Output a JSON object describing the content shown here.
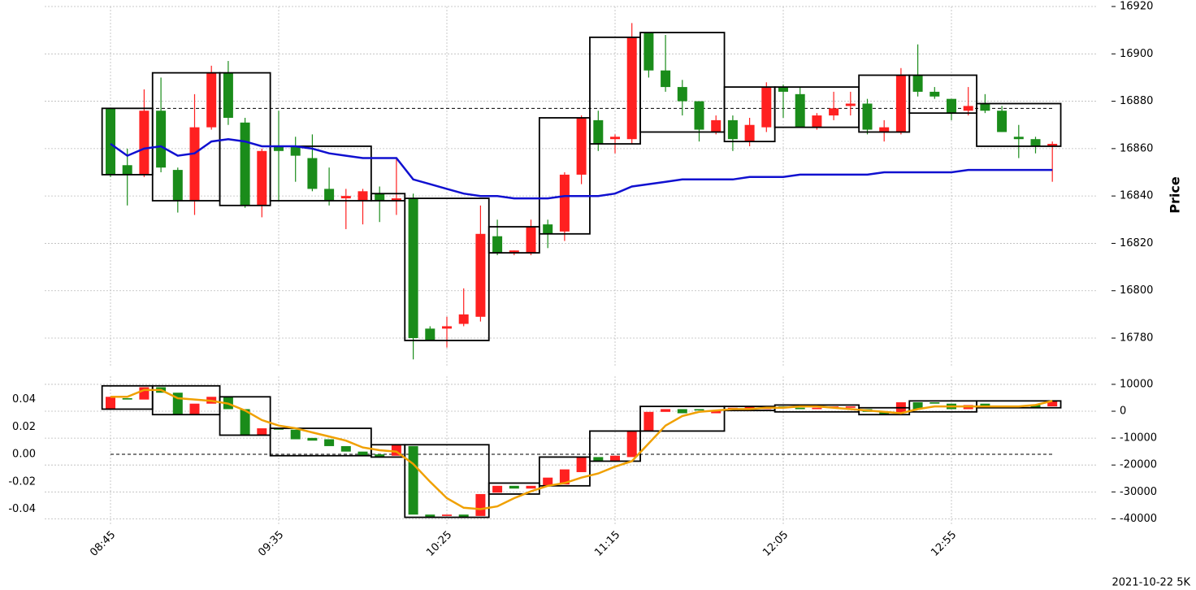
{
  "footer": "2021-10-22 5K",
  "chart_data": [
    {
      "type": "candlestick",
      "ylabel": "Price",
      "categories": [
        "08:45",
        null,
        null,
        null,
        null,
        null,
        null,
        null,
        null,
        null,
        "09:35",
        null,
        null,
        null,
        null,
        null,
        null,
        null,
        null,
        null,
        "10:25",
        null,
        null,
        null,
        null,
        null,
        null,
        null,
        null,
        null,
        "11:15",
        null,
        null,
        null,
        null,
        null,
        null,
        null,
        null,
        null,
        "12:05",
        null,
        null,
        null,
        null,
        null,
        null,
        null,
        null,
        null,
        "12:55",
        null,
        null,
        null,
        null,
        null,
        null
      ],
      "up_color": "#ff2020",
      "down_color": "#1a8c1a",
      "open": [
        16877,
        16853,
        16849,
        16876,
        16851,
        16838,
        16869,
        16892,
        16871,
        16836,
        16861,
        16861,
        16856,
        16843,
        16839,
        16838,
        16841,
        16838,
        16839,
        16784,
        16784,
        16786,
        16789,
        16823,
        16816,
        16816,
        16828,
        16825,
        16849,
        16872,
        16864,
        16864,
        16909,
        16893,
        16886,
        16880,
        16867,
        16872,
        16863,
        16869,
        16886,
        16883,
        16869,
        16874,
        16878,
        16879,
        16867,
        16867,
        16891,
        16884,
        16881,
        16876,
        16879,
        16876,
        16865,
        16864,
        16861
      ],
      "high": [
        16877,
        16860,
        16885,
        16890,
        16852,
        16883,
        16895,
        16897,
        16873,
        16860,
        16876,
        16865,
        16866,
        16852,
        16843,
        16843,
        16844,
        16856,
        16841,
        16785,
        16789,
        16801,
        16836,
        16830,
        16817,
        16830,
        16830,
        16850,
        16874,
        16876,
        16866,
        16913,
        16909,
        16908,
        16889,
        16880,
        16874,
        16874,
        16873,
        16888,
        16887,
        16886,
        16875,
        16884,
        16884,
        16881,
        16872,
        16894,
        16904,
        16886,
        16881,
        16886,
        16883,
        16878,
        16870,
        16865,
        16863
      ],
      "low": [
        16848,
        16836,
        16848,
        16850,
        16833,
        16832,
        16868,
        16870,
        16835,
        16831,
        16838,
        16846,
        16842,
        16836,
        16826,
        16828,
        16829,
        16832,
        16771,
        16779,
        16776,
        16785,
        16787,
        16815,
        16815,
        16815,
        16818,
        16821,
        16845,
        16859,
        16858,
        16862,
        16890,
        16884,
        16874,
        16863,
        16866,
        16859,
        16861,
        16867,
        16873,
        16869,
        16868,
        16872,
        16874,
        16866,
        16863,
        16866,
        16882,
        16881,
        16872,
        16874,
        16875,
        16867,
        16856,
        16858,
        16846
      ],
      "close": [
        16849,
        16849,
        16876,
        16852,
        16838,
        16869,
        16892,
        16873,
        16836,
        16859,
        16859,
        16857,
        16843,
        16838,
        16840,
        16842,
        16838,
        16839,
        16780,
        16779,
        16785,
        16790,
        16824,
        16816,
        16817,
        16827,
        16824,
        16849,
        16873,
        16862,
        16865,
        16907,
        16893,
        16886,
        16880,
        16868,
        16872,
        16864,
        16870,
        16886,
        16884,
        16869,
        16874,
        16877,
        16879,
        16868,
        16869,
        16891,
        16884,
        16882,
        16875,
        16878,
        16876,
        16867,
        16864,
        16861,
        16862
      ],
      "line": {
        "color": "#1010d0",
        "values": [
          16862,
          16857,
          16860,
          16861,
          16857,
          16858,
          16863,
          16864,
          16863,
          16861,
          16861,
          16861,
          16860,
          16858,
          16857,
          16856,
          16856,
          16856,
          16847,
          16845,
          16843,
          16841,
          16840,
          16840,
          16839,
          16839,
          16839,
          16840,
          16840,
          16840,
          16841,
          16844,
          16845,
          16846,
          16847,
          16847,
          16847,
          16847,
          16848,
          16848,
          16848,
          16849,
          16849,
          16849,
          16849,
          16849,
          16850,
          16850,
          16850,
          16850,
          16850,
          16851,
          16851,
          16851,
          16851,
          16851,
          16851
        ]
      },
      "boxes": [
        {
          "start": 0,
          "end": 2,
          "low": 16849,
          "high": 16877
        },
        {
          "start": 3,
          "end": 6,
          "low": 16838,
          "high": 16892
        },
        {
          "start": 7,
          "end": 9,
          "low": 16836,
          "high": 16892
        },
        {
          "start": 10,
          "end": 15,
          "low": 16838,
          "high": 16861
        },
        {
          "start": 16,
          "end": 17,
          "low": 16838,
          "high": 16841
        },
        {
          "start": 18,
          "end": 22,
          "low": 16779,
          "high": 16839
        },
        {
          "start": 23,
          "end": 25,
          "low": 16816,
          "high": 16827
        },
        {
          "start": 26,
          "end": 28,
          "low": 16824,
          "high": 16873
        },
        {
          "start": 29,
          "end": 31,
          "low": 16862,
          "high": 16907
        },
        {
          "start": 32,
          "end": 36,
          "low": 16867,
          "high": 16909
        },
        {
          "start": 37,
          "end": 39,
          "low": 16863,
          "high": 16886
        },
        {
          "start": 40,
          "end": 44,
          "low": 16869,
          "high": 16886
        },
        {
          "start": 45,
          "end": 47,
          "low": 16867,
          "high": 16891
        },
        {
          "start": 48,
          "end": 51,
          "low": 16875,
          "high": 16891
        },
        {
          "start": 52,
          "end": 56,
          "low": 16861,
          "high": 16879
        }
      ],
      "reference_line": 16877,
      "ylim": [
        16768,
        16920
      ],
      "yticks": [
        16780,
        16800,
        16820,
        16840,
        16860,
        16880,
        16900,
        16920
      ],
      "grid": true
    },
    {
      "type": "candlestick",
      "up_color": "#ff2020",
      "down_color": "#1a8c1a",
      "open": [
        0.033,
        0.041,
        0.04,
        0.049,
        0.045,
        0.029,
        0.037,
        0.042,
        0.033,
        0.014,
        0.019,
        0.018,
        0.012,
        0.011,
        0.006,
        0.002,
        0.0,
        -0.001,
        0.006,
        -0.044,
        -0.045,
        -0.044,
        -0.045,
        -0.028,
        -0.023,
        -0.025,
        -0.023,
        -0.022,
        -0.013,
        -0.002,
        -0.005,
        -0.002,
        0.017,
        0.031,
        0.033,
        0.033,
        0.03,
        0.032,
        0.033,
        0.033,
        0.035,
        0.034,
        0.033,
        0.034,
        0.034,
        0.033,
        0.031,
        0.03,
        0.038,
        0.038,
        0.037,
        0.033,
        0.037,
        0.034,
        0.034,
        0.036,
        0.035
      ],
      "close": [
        0.042,
        0.04,
        0.049,
        0.045,
        0.029,
        0.037,
        0.042,
        0.033,
        0.014,
        0.019,
        0.018,
        0.011,
        0.01,
        0.006,
        0.002,
        -0.001,
        -0.002,
        0.007,
        -0.044,
        -0.046,
        -0.044,
        -0.046,
        -0.029,
        -0.023,
        -0.025,
        -0.023,
        -0.017,
        -0.011,
        -0.002,
        -0.005,
        -0.001,
        0.017,
        0.031,
        0.033,
        0.03,
        0.032,
        0.032,
        0.034,
        0.035,
        0.035,
        0.034,
        0.033,
        0.034,
        0.035,
        0.035,
        0.031,
        0.029,
        0.038,
        0.033,
        0.037,
        0.033,
        0.036,
        0.035,
        0.035,
        0.035,
        0.034,
        0.039
      ],
      "line": {
        "color": "#f0a000",
        "values": [
          0.042,
          0.042,
          0.047,
          0.047,
          0.041,
          0.04,
          0.039,
          0.037,
          0.032,
          0.025,
          0.021,
          0.019,
          0.016,
          0.013,
          0.01,
          0.005,
          0.003,
          0.002,
          -0.007,
          -0.02,
          -0.032,
          -0.039,
          -0.04,
          -0.038,
          -0.032,
          -0.027,
          -0.023,
          -0.021,
          -0.017,
          -0.014,
          -0.009,
          -0.005,
          0.008,
          0.021,
          0.028,
          0.031,
          0.032,
          0.033,
          0.033,
          0.034,
          0.034,
          0.035,
          0.035,
          0.034,
          0.033,
          0.032,
          0.031,
          0.03,
          0.033,
          0.035,
          0.035,
          0.035,
          0.035,
          0.035,
          0.035,
          0.036,
          0.039
        ]
      },
      "boxes": [
        {
          "start": 0,
          "end": 2,
          "low": 0.033,
          "high": 0.05
        },
        {
          "start": 3,
          "end": 6,
          "low": 0.029,
          "high": 0.05
        },
        {
          "start": 7,
          "end": 9,
          "low": 0.014,
          "high": 0.042
        },
        {
          "start": 10,
          "end": 15,
          "low": -0.001,
          "high": 0.019
        },
        {
          "start": 16,
          "end": 17,
          "low": -0.002,
          "high": 0.007
        },
        {
          "start": 18,
          "end": 22,
          "low": -0.046,
          "high": 0.007
        },
        {
          "start": 23,
          "end": 25,
          "low": -0.029,
          "high": -0.021
        },
        {
          "start": 26,
          "end": 28,
          "low": -0.023,
          "high": -0.002
        },
        {
          "start": 29,
          "end": 31,
          "low": -0.005,
          "high": 0.017
        },
        {
          "start": 32,
          "end": 36,
          "low": 0.017,
          "high": 0.035
        },
        {
          "start": 37,
          "end": 39,
          "low": 0.032,
          "high": 0.035
        },
        {
          "start": 40,
          "end": 44,
          "low": 0.031,
          "high": 0.036
        },
        {
          "start": 45,
          "end": 47,
          "low": 0.029,
          "high": 0.034
        },
        {
          "start": 48,
          "end": 51,
          "low": 0.031,
          "high": 0.039
        },
        {
          "start": 52,
          "end": 56,
          "low": 0.034,
          "high": 0.039
        }
      ],
      "reference_line": 0,
      "ylim": [
        -0.051,
        0.057
      ],
      "yticks": [
        -0.04,
        -0.02,
        {
          "value": 0,
          "label": "0.00"
        },
        0.02,
        0.04
      ],
      "y2lim": [
        -42000,
        13000
      ],
      "y2ticks": [
        -40000,
        -30000,
        -20000,
        -10000,
        0,
        10000
      ],
      "grid": true
    }
  ]
}
